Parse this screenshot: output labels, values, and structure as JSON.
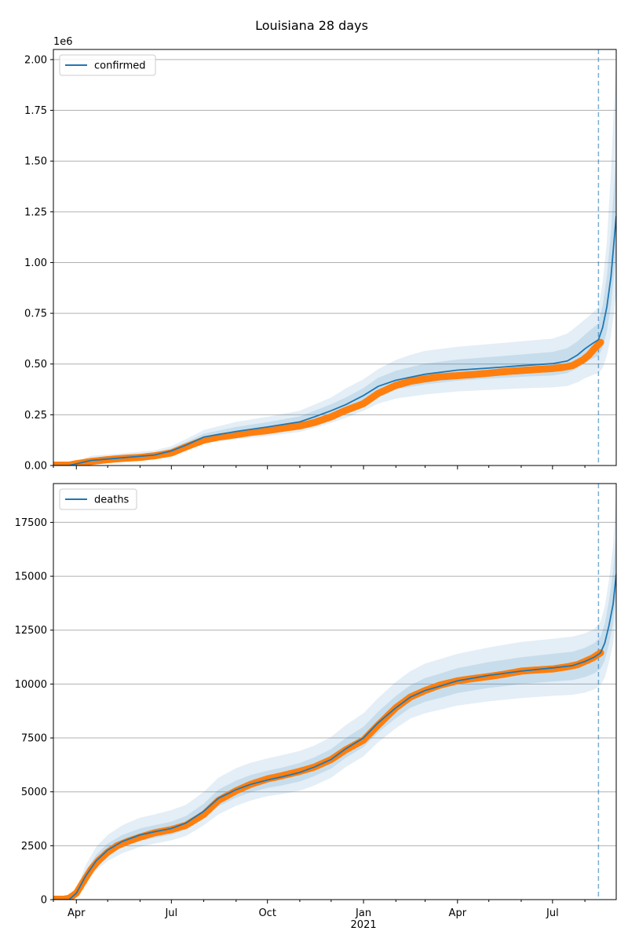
{
  "title": "Louisiana 28 days",
  "colors": {
    "line": "#1f77b4",
    "observed": "#ff7f0e",
    "band": "#1f77b4",
    "grid": "#b0b0b0",
    "vline": "#1f77b4"
  },
  "chart_data": [
    {
      "type": "line",
      "panel": "top",
      "title": "",
      "xlabel": "",
      "ylabel": "",
      "y_offset_label": "1e6",
      "ylim": [
        0,
        2050000
      ],
      "yticks": [
        0,
        250000,
        500000,
        750000,
        1000000,
        1250000,
        1500000,
        1750000,
        2000000
      ],
      "ytick_labels": [
        "0.00",
        "0.25",
        "0.50",
        "0.75",
        "1.00",
        "1.25",
        "1.50",
        "1.75",
        "2.00"
      ],
      "grid": "horizontal",
      "legend_position": "top-left",
      "legend": [
        "confirmed"
      ],
      "xlim": [
        "2020-03-10",
        "2021-08-31"
      ],
      "forecast_start": "2021-08-14",
      "series": [
        {
          "name": "confirmed",
          "role": "model",
          "x": [
            "2020-03-10",
            "2020-03-25",
            "2020-04-15",
            "2020-05-15",
            "2020-06-15",
            "2020-07-01",
            "2020-07-15",
            "2020-08-01",
            "2020-09-01",
            "2020-10-01",
            "2020-11-01",
            "2020-11-15",
            "2020-12-01",
            "2020-12-15",
            "2021-01-01",
            "2021-01-15",
            "2021-02-01",
            "2021-02-15",
            "2021-03-01",
            "2021-04-01",
            "2021-05-01",
            "2021-06-01",
            "2021-07-01",
            "2021-07-15",
            "2021-07-25",
            "2021-08-01",
            "2021-08-08",
            "2021-08-14",
            "2021-08-18",
            "2021-08-22",
            "2021-08-26",
            "2021-08-31"
          ],
          "y": [
            0,
            0,
            25000,
            38000,
            52000,
            72000,
            100000,
            140000,
            168000,
            190000,
            215000,
            240000,
            270000,
            300000,
            345000,
            390000,
            420000,
            435000,
            450000,
            470000,
            480000,
            492000,
            502000,
            515000,
            545000,
            575000,
            600000,
            620000,
            680000,
            780000,
            930000,
            1230000
          ]
        },
        {
          "name": "observed",
          "role": "observed",
          "x": [
            "2020-03-10",
            "2020-03-25",
            "2020-04-01",
            "2020-04-15",
            "2020-05-01",
            "2020-05-15",
            "2020-06-01",
            "2020-06-15",
            "2020-07-01",
            "2020-07-15",
            "2020-08-01",
            "2020-08-15",
            "2020-09-01",
            "2020-09-15",
            "2020-10-01",
            "2020-10-15",
            "2020-11-01",
            "2020-11-15",
            "2020-12-01",
            "2020-12-15",
            "2021-01-01",
            "2021-01-15",
            "2021-02-01",
            "2021-02-15",
            "2021-03-01",
            "2021-03-15",
            "2021-04-01",
            "2021-04-15",
            "2021-05-01",
            "2021-05-15",
            "2021-06-01",
            "2021-06-15",
            "2021-07-01",
            "2021-07-10",
            "2021-07-20",
            "2021-07-30",
            "2021-08-05",
            "2021-08-10",
            "2021-08-16"
          ],
          "y": [
            2000,
            2000,
            9000,
            20000,
            29000,
            35000,
            40000,
            48000,
            62000,
            92000,
            125000,
            140000,
            152000,
            163000,
            172000,
            183000,
            195000,
            212000,
            240000,
            272000,
            305000,
            355000,
            395000,
            415000,
            427000,
            437000,
            443000,
            448000,
            455000,
            462000,
            468000,
            473000,
            478000,
            483000,
            492000,
            520000,
            545000,
            575000,
            607000
          ]
        },
        {
          "name": "uncertainty_band_outer",
          "role": "band",
          "x": [
            "2020-03-10",
            "2020-03-25",
            "2020-04-15",
            "2020-05-15",
            "2020-06-15",
            "2020-07-01",
            "2020-07-15",
            "2020-08-01",
            "2020-09-01",
            "2020-10-01",
            "2020-11-01",
            "2020-11-15",
            "2020-12-01",
            "2020-12-15",
            "2021-01-01",
            "2021-01-15",
            "2021-02-01",
            "2021-02-15",
            "2021-03-01",
            "2021-04-01",
            "2021-05-01",
            "2021-06-01",
            "2021-07-01",
            "2021-07-15",
            "2021-07-25",
            "2021-08-01",
            "2021-08-08",
            "2021-08-14",
            "2021-08-18",
            "2021-08-22",
            "2021-08-26",
            "2021-08-31"
          ],
          "lower": [
            0,
            0,
            12000,
            22000,
            33000,
            48000,
            72000,
            110000,
            130000,
            145000,
            165000,
            185000,
            210000,
            235000,
            270000,
            305000,
            330000,
            340000,
            350000,
            365000,
            372000,
            380000,
            385000,
            392000,
            410000,
            430000,
            445000,
            455000,
            480000,
            540000,
            640000,
            850000
          ],
          "upper": [
            0,
            0,
            48000,
            60000,
            75000,
            95000,
            130000,
            175000,
            215000,
            240000,
            270000,
            300000,
            335000,
            380000,
            425000,
            475000,
            520000,
            545000,
            565000,
            585000,
            598000,
            612000,
            625000,
            650000,
            690000,
            720000,
            750000,
            780000,
            900000,
            1100000,
            1450000,
            2000000
          ]
        },
        {
          "name": "uncertainty_band_inner",
          "role": "band",
          "x": [
            "2020-03-10",
            "2020-03-25",
            "2020-04-15",
            "2020-05-15",
            "2020-06-15",
            "2020-07-01",
            "2020-07-15",
            "2020-08-01",
            "2020-09-01",
            "2020-10-01",
            "2020-11-01",
            "2020-11-15",
            "2020-12-01",
            "2020-12-15",
            "2021-01-01",
            "2021-01-15",
            "2021-02-01",
            "2021-02-15",
            "2021-03-01",
            "2021-04-01",
            "2021-05-01",
            "2021-06-01",
            "2021-07-01",
            "2021-07-15",
            "2021-07-25",
            "2021-08-01",
            "2021-08-08",
            "2021-08-14",
            "2021-08-18",
            "2021-08-22",
            "2021-08-26",
            "2021-08-31"
          ],
          "lower": [
            0,
            0,
            19000,
            30000,
            43000,
            60000,
            86000,
            125000,
            150000,
            168000,
            190000,
            212000,
            240000,
            268000,
            308000,
            348000,
            375000,
            388000,
            400000,
            418000,
            428000,
            437000,
            444000,
            455000,
            480000,
            505000,
            525000,
            540000,
            580000,
            660000,
            790000,
            1040000
          ],
          "upper": [
            0,
            0,
            33000,
            47000,
            62000,
            84000,
            115000,
            157000,
            190000,
            214000,
            242000,
            270000,
            302000,
            335000,
            382000,
            432000,
            467000,
            485000,
            502000,
            522000,
            534000,
            547000,
            560000,
            578000,
            612000,
            645000,
            675000,
            700000,
            790000,
            930000,
            1150000,
            1550000
          ]
        }
      ]
    },
    {
      "type": "line",
      "panel": "bottom",
      "title": "",
      "xlabel": "",
      "ylabel": "",
      "ylim": [
        0,
        19300
      ],
      "yticks": [
        0,
        2500,
        5000,
        7500,
        10000,
        12500,
        15000,
        17500
      ],
      "ytick_labels": [
        "0",
        "2500",
        "5000",
        "7500",
        "10000",
        "12500",
        "15000",
        "17500"
      ],
      "grid": "horizontal",
      "legend_position": "top-left",
      "legend": [
        "deaths"
      ],
      "xlim": [
        "2020-03-10",
        "2021-08-31"
      ],
      "xtick_labels": [
        "Apr",
        "Jul",
        "Oct",
        "Jan",
        "Apr",
        "Jul"
      ],
      "xtick_dates": [
        "2020-04-01",
        "2020-07-01",
        "2020-10-01",
        "2021-01-01",
        "2021-04-01",
        "2021-07-01"
      ],
      "x_year_label": "2021",
      "forecast_start": "2021-08-14",
      "series": [
        {
          "name": "deaths",
          "role": "model",
          "x": [
            "2020-03-10",
            "2020-03-25",
            "2020-04-01",
            "2020-04-10",
            "2020-04-20",
            "2020-05-01",
            "2020-05-15",
            "2020-06-01",
            "2020-06-15",
            "2020-07-01",
            "2020-07-15",
            "2020-08-01",
            "2020-08-15",
            "2020-09-01",
            "2020-09-15",
            "2020-10-01",
            "2020-10-15",
            "2020-11-01",
            "2020-11-15",
            "2020-12-01",
            "2020-12-15",
            "2021-01-01",
            "2021-01-15",
            "2021-02-01",
            "2021-02-15",
            "2021-03-01",
            "2021-03-15",
            "2021-04-01",
            "2021-05-01",
            "2021-06-01",
            "2021-07-01",
            "2021-07-20",
            "2021-08-01",
            "2021-08-10",
            "2021-08-16",
            "2021-08-20",
            "2021-08-24",
            "2021-08-28",
            "2021-08-31"
          ],
          "y": [
            0,
            0,
            300,
            1100,
            1800,
            2300,
            2700,
            3000,
            3150,
            3300,
            3550,
            4100,
            4700,
            5100,
            5350,
            5550,
            5700,
            5900,
            6150,
            6500,
            7000,
            7500,
            8200,
            8900,
            9400,
            9700,
            9900,
            10150,
            10400,
            10600,
            10750,
            10850,
            11050,
            11250,
            11450,
            11900,
            12700,
            13700,
            15100
          ]
        },
        {
          "name": "observed",
          "role": "observed",
          "x": [
            "2020-03-10",
            "2020-03-20",
            "2020-03-25",
            "2020-04-01",
            "2020-04-08",
            "2020-04-15",
            "2020-04-22",
            "2020-05-01",
            "2020-05-10",
            "2020-05-20",
            "2020-06-01",
            "2020-06-15",
            "2020-07-01",
            "2020-07-15",
            "2020-08-01",
            "2020-08-15",
            "2020-09-01",
            "2020-09-15",
            "2020-10-01",
            "2020-10-15",
            "2020-11-01",
            "2020-11-15",
            "2020-12-01",
            "2020-12-15",
            "2021-01-01",
            "2021-01-15",
            "2021-02-01",
            "2021-02-15",
            "2021-03-01",
            "2021-03-15",
            "2021-04-01",
            "2021-04-15",
            "2021-05-01",
            "2021-05-15",
            "2021-06-01",
            "2021-06-15",
            "2021-07-01",
            "2021-07-15",
            "2021-07-25",
            "2021-08-01",
            "2021-08-08",
            "2021-08-16"
          ],
          "y": [
            20,
            20,
            60,
            300,
            850,
            1400,
            1800,
            2200,
            2500,
            2700,
            2900,
            3100,
            3250,
            3450,
            3950,
            4600,
            5050,
            5350,
            5600,
            5750,
            5950,
            6150,
            6500,
            6950,
            7400,
            8100,
            8900,
            9400,
            9700,
            9950,
            10150,
            10250,
            10350,
            10450,
            10600,
            10650,
            10700,
            10800,
            10900,
            11050,
            11200,
            11450
          ]
        },
        {
          "name": "uncertainty_band_outer",
          "role": "band",
          "x": [
            "2020-03-10",
            "2020-03-25",
            "2020-04-01",
            "2020-04-10",
            "2020-04-20",
            "2020-05-01",
            "2020-05-15",
            "2020-06-01",
            "2020-06-15",
            "2020-07-01",
            "2020-07-15",
            "2020-08-01",
            "2020-08-15",
            "2020-09-01",
            "2020-09-15",
            "2020-10-01",
            "2020-10-15",
            "2020-11-01",
            "2020-11-15",
            "2020-12-01",
            "2020-12-15",
            "2021-01-01",
            "2021-01-15",
            "2021-02-01",
            "2021-02-15",
            "2021-03-01",
            "2021-03-15",
            "2021-04-01",
            "2021-05-01",
            "2021-06-01",
            "2021-07-01",
            "2021-07-20",
            "2021-08-01",
            "2021-08-10",
            "2021-08-16",
            "2021-08-20",
            "2021-08-24",
            "2021-08-28",
            "2021-08-31"
          ],
          "lower": [
            0,
            0,
            200,
            800,
            1350,
            1800,
            2150,
            2450,
            2600,
            2750,
            2950,
            3450,
            3950,
            4350,
            4600,
            4800,
            4900,
            5050,
            5300,
            5650,
            6150,
            6650,
            7300,
            7950,
            8400,
            8650,
            8800,
            9000,
            9200,
            9350,
            9450,
            9500,
            9600,
            9750,
            9950,
            10300,
            11000,
            11900,
            13200
          ],
          "upper": [
            0,
            0,
            500,
            1600,
            2450,
            3000,
            3450,
            3800,
            3950,
            4150,
            4400,
            5000,
            5650,
            6100,
            6350,
            6550,
            6700,
            6900,
            7150,
            7550,
            8100,
            8650,
            9350,
            10100,
            10600,
            10950,
            11150,
            11400,
            11700,
            11950,
            12100,
            12200,
            12350,
            12550,
            12900,
            13600,
            14800,
            16400,
            19000
          ]
        },
        {
          "name": "uncertainty_band_inner",
          "role": "band",
          "x": [
            "2020-03-10",
            "2020-03-25",
            "2020-04-01",
            "2020-04-10",
            "2020-04-20",
            "2020-05-01",
            "2020-05-15",
            "2020-06-01",
            "2020-06-15",
            "2020-07-01",
            "2020-07-15",
            "2020-08-01",
            "2020-08-15",
            "2020-09-01",
            "2020-09-15",
            "2020-10-01",
            "2020-10-15",
            "2020-11-01",
            "2020-11-15",
            "2020-12-01",
            "2020-12-15",
            "2021-01-01",
            "2021-01-15",
            "2021-02-01",
            "2021-02-15",
            "2021-03-01",
            "2021-03-15",
            "2021-04-01",
            "2021-05-01",
            "2021-06-01",
            "2021-07-01",
            "2021-07-20",
            "2021-08-01",
            "2021-08-10",
            "2021-08-16",
            "2021-08-20",
            "2021-08-24",
            "2021-08-28",
            "2021-08-31"
          ],
          "lower": [
            0,
            0,
            250,
            950,
            1550,
            2050,
            2420,
            2720,
            2870,
            3020,
            3250,
            3780,
            4330,
            4730,
            4980,
            5180,
            5300,
            5480,
            5730,
            6080,
            6580,
            7080,
            7750,
            8420,
            8900,
            9180,
            9350,
            9580,
            9820,
            10000,
            10120,
            10180,
            10320,
            10500,
            10700,
            11100,
            11850,
            12800,
            14150
          ],
          "upper": [
            0,
            0,
            380,
            1300,
            2080,
            2600,
            3000,
            3300,
            3450,
            3620,
            3880,
            4450,
            5100,
            5520,
            5780,
            5980,
            6120,
            6340,
            6600,
            6980,
            7500,
            8020,
            8720,
            9450,
            9950,
            10280,
            10480,
            10740,
            11020,
            11240,
            11400,
            11500,
            11680,
            11900,
            12200,
            12800,
            13850,
            15200,
            17000
          ]
        }
      ]
    }
  ]
}
